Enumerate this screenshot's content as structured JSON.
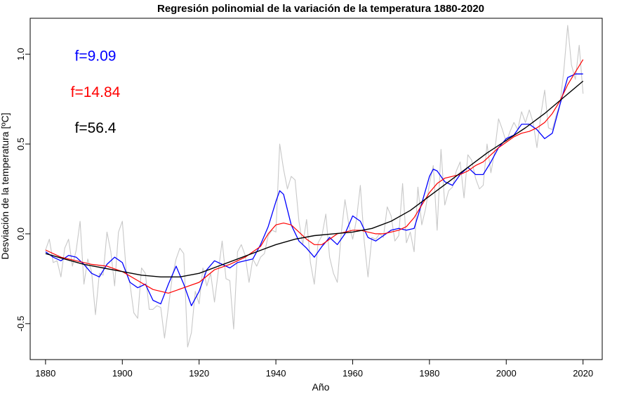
{
  "chart_data": {
    "type": "line",
    "title": "Regresión polinomial de la variación de la temperatura 1880-2020",
    "xlabel": "Año",
    "ylabel": "Desviación de la temperatura [ºC]",
    "xlim": [
      1876,
      2025
    ],
    "ylim": [
      -0.7,
      1.2
    ],
    "x_ticks": [
      1880,
      1900,
      1920,
      1940,
      1960,
      1980,
      2000,
      2020
    ],
    "y_ticks": [
      -0.5,
      0.0,
      0.5,
      1.0
    ],
    "y_tick_labels": [
      "-0.5",
      "0.0",
      "0.5",
      "1.0"
    ],
    "grid": false,
    "annotations": [
      {
        "text": "f=9.09",
        "color": "#0000ff",
        "y": 0.99
      },
      {
        "text": "f=14.84",
        "color": "#ff0000",
        "y": 0.79
      },
      {
        "text": "f=56.4",
        "color": "#000000",
        "y": 0.59
      }
    ],
    "series": [
      {
        "color": "#c8c8c8",
        "x": [
          1880,
          1881,
          1882,
          1883,
          1884,
          1885,
          1886,
          1887,
          1888,
          1889,
          1890,
          1891,
          1892,
          1893,
          1894,
          1895,
          1896,
          1897,
          1898,
          1899,
          1900,
          1901,
          1902,
          1903,
          1904,
          1905,
          1906,
          1907,
          1908,
          1909,
          1910,
          1911,
          1912,
          1913,
          1914,
          1915,
          1916,
          1917,
          1918,
          1919,
          1920,
          1921,
          1922,
          1923,
          1924,
          1925,
          1926,
          1927,
          1928,
          1929,
          1930,
          1931,
          1932,
          1933,
          1934,
          1935,
          1936,
          1937,
          1938,
          1939,
          1940,
          1941,
          1942,
          1943,
          1944,
          1945,
          1946,
          1947,
          1948,
          1949,
          1950,
          1951,
          1952,
          1953,
          1954,
          1955,
          1956,
          1957,
          1958,
          1959,
          1960,
          1961,
          1962,
          1963,
          1964,
          1965,
          1966,
          1967,
          1968,
          1969,
          1970,
          1971,
          1972,
          1973,
          1974,
          1975,
          1976,
          1977,
          1978,
          1979,
          1980,
          1981,
          1982,
          1983,
          1984,
          1985,
          1986,
          1987,
          1988,
          1989,
          1990,
          1991,
          1992,
          1993,
          1994,
          1995,
          1996,
          1997,
          1998,
          1999,
          2000,
          2001,
          2002,
          2003,
          2004,
          2005,
          2006,
          2007,
          2008,
          2009,
          2010,
          2011,
          2012,
          2013,
          2014,
          2015,
          2016,
          2017,
          2018,
          2019,
          2020
        ],
        "y": [
          -0.09,
          -0.03,
          -0.16,
          -0.15,
          -0.24,
          -0.08,
          -0.03,
          -0.18,
          -0.09,
          0.07,
          -0.28,
          -0.14,
          -0.21,
          -0.45,
          -0.22,
          -0.23,
          0.01,
          -0.1,
          -0.29,
          0.01,
          0.07,
          -0.2,
          -0.28,
          -0.44,
          -0.47,
          -0.19,
          -0.22,
          -0.42,
          -0.42,
          -0.4,
          -0.41,
          -0.58,
          -0.41,
          -0.24,
          -0.14,
          -0.08,
          -0.11,
          -0.63,
          -0.55,
          -0.32,
          -0.39,
          -0.19,
          -0.29,
          -0.22,
          -0.38,
          -0.21,
          -0.04,
          -0.25,
          -0.26,
          -0.53,
          -0.1,
          -0.06,
          -0.12,
          -0.27,
          -0.14,
          -0.18,
          -0.13,
          -0.11,
          -0.01,
          0.02,
          0.01,
          0.5,
          0.36,
          0.25,
          0.32,
          0.3,
          0.07,
          -0.06,
          0.08,
          -0.16,
          -0.28,
          -0.05,
          -0.01,
          0.11,
          -0.13,
          -0.22,
          -0.27,
          0.0,
          0.19,
          0.05,
          -0.03,
          0.08,
          0.27,
          -0.04,
          -0.24,
          -0.02,
          -0.03,
          0.0,
          -0.02,
          0.15,
          0.1,
          -0.04,
          -0.01,
          0.28,
          -0.05,
          0.01,
          -0.1,
          0.26,
          0.05,
          0.14,
          0.28,
          0.38,
          0.02,
          0.47,
          0.16,
          0.24,
          0.26,
          0.35,
          0.4,
          0.2,
          0.44,
          0.41,
          0.31,
          0.25,
          0.27,
          0.5,
          0.34,
          0.46,
          0.64,
          0.58,
          0.51,
          0.57,
          0.62,
          0.58,
          0.68,
          0.62,
          0.69,
          0.62,
          0.48,
          0.66,
          0.8,
          0.59,
          0.58,
          0.66,
          0.72,
          0.91,
          1.16,
          0.94,
          0.86,
          1.05,
          0.78
        ]
      },
      {
        "color": "#0000ff",
        "x": [
          1880,
          1882,
          1884,
          1886,
          1888,
          1890,
          1892,
          1894,
          1896,
          1898,
          1900,
          1902,
          1904,
          1906,
          1908,
          1910,
          1912,
          1914,
          1916,
          1918,
          1920,
          1922,
          1924,
          1926,
          1928,
          1930,
          1932,
          1934,
          1936,
          1938,
          1940,
          1941,
          1942,
          1944,
          1946,
          1948,
          1950,
          1952,
          1954,
          1956,
          1958,
          1960,
          1962,
          1964,
          1966,
          1968,
          1970,
          1972,
          1974,
          1976,
          1978,
          1980,
          1981,
          1982,
          1984,
          1986,
          1988,
          1990,
          1992,
          1994,
          1996,
          1998,
          2000,
          2002,
          2004,
          2006,
          2008,
          2010,
          2012,
          2014,
          2016,
          2018,
          2020
        ],
        "y": [
          -0.1,
          -0.13,
          -0.15,
          -0.12,
          -0.13,
          -0.17,
          -0.22,
          -0.24,
          -0.17,
          -0.13,
          -0.16,
          -0.27,
          -0.3,
          -0.28,
          -0.37,
          -0.39,
          -0.28,
          -0.18,
          -0.28,
          -0.4,
          -0.32,
          -0.2,
          -0.15,
          -0.17,
          -0.19,
          -0.16,
          -0.15,
          -0.14,
          -0.06,
          0.04,
          0.18,
          0.24,
          0.22,
          0.05,
          -0.04,
          -0.08,
          -0.13,
          -0.07,
          -0.02,
          -0.06,
          0.0,
          0.1,
          0.07,
          -0.02,
          -0.04,
          -0.01,
          0.02,
          0.03,
          0.02,
          0.03,
          0.17,
          0.32,
          0.36,
          0.35,
          0.29,
          0.27,
          0.33,
          0.37,
          0.33,
          0.33,
          0.4,
          0.48,
          0.53,
          0.55,
          0.61,
          0.61,
          0.58,
          0.53,
          0.56,
          0.72,
          0.87,
          0.89,
          0.89
        ]
      },
      {
        "color": "#ff0000",
        "x": [
          1880,
          1884,
          1888,
          1892,
          1896,
          1900,
          1904,
          1908,
          1912,
          1916,
          1920,
          1924,
          1928,
          1932,
          1936,
          1938,
          1940,
          1942,
          1944,
          1946,
          1948,
          1950,
          1952,
          1954,
          1956,
          1958,
          1960,
          1962,
          1964,
          1966,
          1968,
          1970,
          1972,
          1974,
          1976,
          1978,
          1980,
          1982,
          1984,
          1986,
          1988,
          1990,
          1992,
          1994,
          1996,
          1998,
          2000,
          2002,
          2004,
          2006,
          2008,
          2010,
          2012,
          2014,
          2016,
          2018,
          2020
        ],
        "y": [
          -0.09,
          -0.13,
          -0.15,
          -0.17,
          -0.18,
          -0.21,
          -0.26,
          -0.31,
          -0.33,
          -0.3,
          -0.27,
          -0.2,
          -0.17,
          -0.13,
          -0.07,
          0.0,
          0.05,
          0.06,
          0.05,
          0.01,
          -0.03,
          -0.06,
          -0.06,
          -0.03,
          0.0,
          0.01,
          0.02,
          0.02,
          0.01,
          0.0,
          0.0,
          0.01,
          0.02,
          0.04,
          0.09,
          0.16,
          0.23,
          0.28,
          0.31,
          0.32,
          0.33,
          0.35,
          0.38,
          0.4,
          0.44,
          0.48,
          0.51,
          0.54,
          0.56,
          0.57,
          0.59,
          0.62,
          0.67,
          0.74,
          0.83,
          0.9,
          0.97
        ]
      },
      {
        "color": "#000000",
        "x": [
          1880,
          1885,
          1890,
          1895,
          1900,
          1905,
          1910,
          1915,
          1920,
          1925,
          1930,
          1935,
          1940,
          1945,
          1950,
          1955,
          1960,
          1965,
          1970,
          1975,
          1980,
          1985,
          1990,
          1995,
          2000,
          2005,
          2010,
          2015,
          2020
        ],
        "y": [
          -0.11,
          -0.14,
          -0.17,
          -0.19,
          -0.21,
          -0.23,
          -0.24,
          -0.24,
          -0.22,
          -0.18,
          -0.14,
          -0.1,
          -0.06,
          -0.03,
          -0.01,
          0.0,
          0.01,
          0.03,
          0.07,
          0.13,
          0.21,
          0.29,
          0.37,
          0.45,
          0.52,
          0.59,
          0.67,
          0.76,
          0.85
        ]
      }
    ]
  }
}
